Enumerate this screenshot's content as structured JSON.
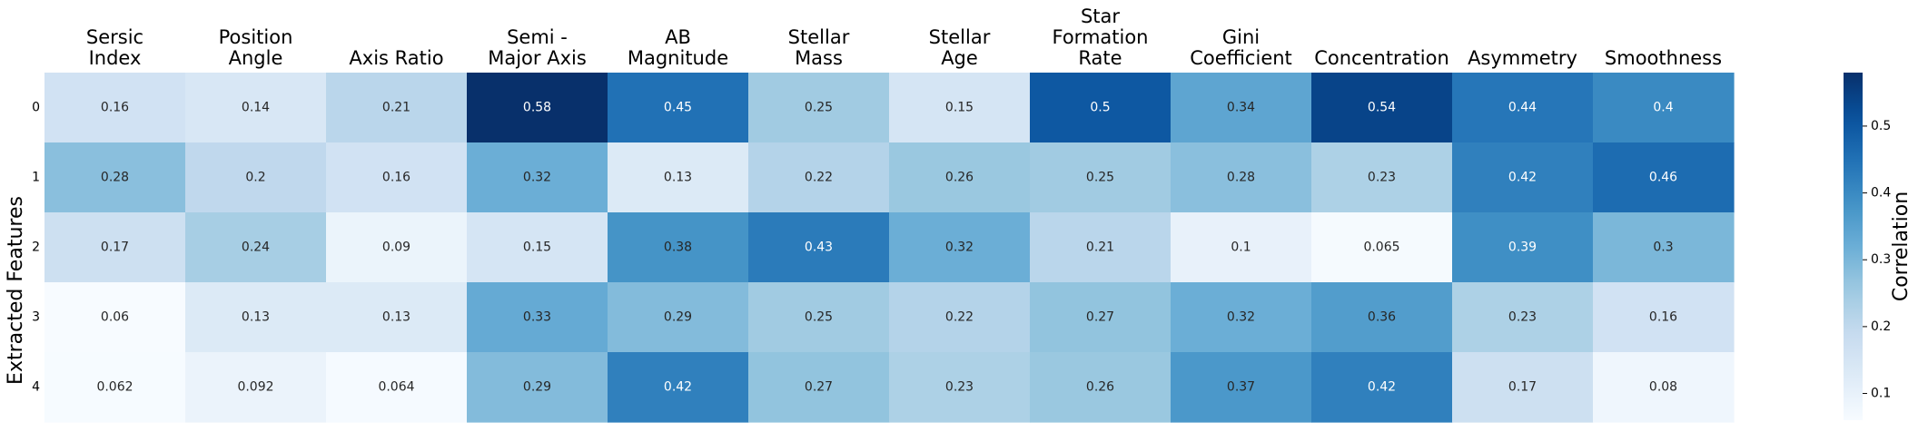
{
  "chart_data": {
    "type": "heatmap",
    "title": "",
    "xlabel": "",
    "ylabel": "Extracted Features",
    "colorbar_label": "Correlation",
    "colormap": "Blues",
    "color_range": [
      0.06,
      0.58
    ],
    "colorbar_ticks": [
      0.1,
      0.2,
      0.3,
      0.4,
      0.5
    ],
    "colorbar_tick_labels": [
      "0.1",
      "0.2",
      "0.3",
      "0.4",
      "0.5"
    ],
    "columns": [
      [
        "Sersic",
        "Index"
      ],
      [
        "Position",
        "Angle"
      ],
      [
        "Axis Ratio"
      ],
      [
        "Semi -",
        "Major Axis"
      ],
      [
        "AB",
        "Magnitude"
      ],
      [
        "Stellar",
        "Mass"
      ],
      [
        "Stellar",
        "Age"
      ],
      [
        "Star",
        "Formation",
        "Rate"
      ],
      [
        "Gini",
        "Coefficient"
      ],
      [
        "Concentration"
      ],
      [
        "Asymmetry"
      ],
      [
        "Smoothness"
      ]
    ],
    "rows": [
      "0",
      "1",
      "2",
      "3",
      "4"
    ],
    "values": [
      [
        0.16,
        0.14,
        0.21,
        0.58,
        0.45,
        0.25,
        0.15,
        0.5,
        0.34,
        0.54,
        0.44,
        0.4
      ],
      [
        0.28,
        0.2,
        0.16,
        0.32,
        0.13,
        0.22,
        0.26,
        0.25,
        0.28,
        0.23,
        0.42,
        0.46
      ],
      [
        0.17,
        0.24,
        0.09,
        0.15,
        0.38,
        0.43,
        0.32,
        0.21,
        0.1,
        0.065,
        0.39,
        0.3
      ],
      [
        0.06,
        0.13,
        0.13,
        0.33,
        0.29,
        0.25,
        0.22,
        0.27,
        0.32,
        0.36,
        0.23,
        0.16
      ],
      [
        0.062,
        0.092,
        0.064,
        0.29,
        0.42,
        0.27,
        0.23,
        0.26,
        0.37,
        0.42,
        0.17,
        0.08
      ]
    ],
    "value_labels": [
      [
        "0.16",
        "0.14",
        "0.21",
        "0.58",
        "0.45",
        "0.25",
        "0.15",
        "0.5",
        "0.34",
        "0.54",
        "0.44",
        "0.4"
      ],
      [
        "0.28",
        "0.2",
        "0.16",
        "0.32",
        "0.13",
        "0.22",
        "0.26",
        "0.25",
        "0.28",
        "0.23",
        "0.42",
        "0.46"
      ],
      [
        "0.17",
        "0.24",
        "0.09",
        "0.15",
        "0.38",
        "0.43",
        "0.32",
        "0.21",
        "0.1",
        "0.065",
        "0.39",
        "0.3"
      ],
      [
        "0.06",
        "0.13",
        "0.13",
        "0.33",
        "0.29",
        "0.25",
        "0.22",
        "0.27",
        "0.32",
        "0.36",
        "0.23",
        "0.16"
      ],
      [
        "0.062",
        "0.092",
        "0.064",
        "0.29",
        "0.42",
        "0.27",
        "0.23",
        "0.26",
        "0.37",
        "0.42",
        "0.17",
        "0.08"
      ]
    ]
  }
}
